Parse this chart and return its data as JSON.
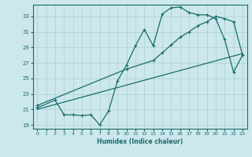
{
  "xlabel": "Humidex (Indice chaleur)",
  "bg_color": "#cce8ec",
  "grid_color": "#b0d4d8",
  "line_color": "#1a6b6b",
  "xlim": [
    -0.5,
    23.5
  ],
  "ylim": [
    18.5,
    34.5
  ],
  "xticks": [
    0,
    1,
    2,
    3,
    4,
    5,
    6,
    7,
    8,
    9,
    10,
    11,
    12,
    13,
    14,
    15,
    16,
    17,
    18,
    19,
    20,
    21,
    22,
    23
  ],
  "yticks": [
    19,
    21,
    23,
    25,
    27,
    29,
    31,
    33
  ],
  "curve1_x": [
    0,
    2,
    3,
    4,
    5,
    6,
    7,
    8,
    9,
    10,
    11,
    12,
    13,
    14,
    15,
    16,
    17,
    18,
    19,
    20,
    21,
    22,
    23
  ],
  "curve1_y": [
    21.2,
    22.2,
    20.3,
    20.3,
    20.2,
    20.3,
    19.0,
    20.8,
    24.7,
    26.7,
    29.2,
    31.3,
    29.2,
    33.3,
    34.1,
    34.2,
    33.5,
    33.2,
    33.2,
    32.7,
    30.0,
    25.8,
    28.0
  ],
  "curve2_x": [
    0,
    10,
    13,
    14,
    15,
    16,
    17,
    18,
    19,
    20,
    21,
    22,
    23
  ],
  "curve2_y": [
    21.5,
    26.2,
    27.3,
    28.3,
    29.3,
    30.3,
    31.0,
    31.8,
    32.3,
    33.0,
    32.7,
    32.3,
    28.0
  ],
  "curve3_x": [
    0,
    23
  ],
  "curve3_y": [
    21.0,
    28.2
  ]
}
